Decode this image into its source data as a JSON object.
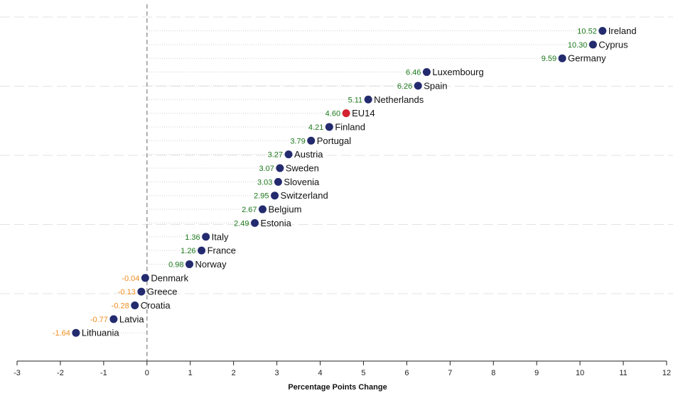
{
  "chart_data": {
    "type": "scatter",
    "title": "",
    "xlabel": "Percentage Points Change",
    "ylabel": "",
    "xlim": [
      -3,
      12
    ],
    "xticks": [
      -3,
      -2,
      -1,
      0,
      1,
      2,
      3,
      4,
      5,
      6,
      7,
      8,
      9,
      10,
      11,
      12
    ],
    "xtick_labels": [
      "-3",
      "-2",
      "-1",
      "0",
      "1",
      "2",
      "3",
      "4",
      "5",
      "6",
      "7",
      "8",
      "9",
      "10",
      "11",
      "12"
    ],
    "reference_line": 0,
    "grid": true,
    "legend": "none",
    "points": [
      {
        "label": "Ireland",
        "value": 10.52,
        "value_text": "10.52"
      },
      {
        "label": "Cyprus",
        "value": 10.3,
        "value_text": "10.30"
      },
      {
        "label": "Germany",
        "value": 9.59,
        "value_text": "9.59"
      },
      {
        "label": "Luxembourg",
        "value": 6.46,
        "value_text": "6.46"
      },
      {
        "label": "Spain",
        "value": 6.26,
        "value_text": "6.26"
      },
      {
        "label": "Netherlands",
        "value": 5.11,
        "value_text": "5.11"
      },
      {
        "label": "EU14",
        "value": 4.6,
        "value_text": "4.60",
        "highlight": true
      },
      {
        "label": "Finland",
        "value": 4.21,
        "value_text": "4.21"
      },
      {
        "label": "Portugal",
        "value": 3.79,
        "value_text": "3.79"
      },
      {
        "label": "Austria",
        "value": 3.27,
        "value_text": "3.27"
      },
      {
        "label": "Sweden",
        "value": 3.07,
        "value_text": "3.07"
      },
      {
        "label": "Slovenia",
        "value": 3.03,
        "value_text": "3.03"
      },
      {
        "label": "Switzerland",
        "value": 2.95,
        "value_text": "2.95"
      },
      {
        "label": "Belgium",
        "value": 2.67,
        "value_text": "2.67"
      },
      {
        "label": "Estonia",
        "value": 2.49,
        "value_text": "2.49"
      },
      {
        "label": "Italy",
        "value": 1.36,
        "value_text": "1.36"
      },
      {
        "label": "France",
        "value": 1.26,
        "value_text": "1.26"
      },
      {
        "label": "Norway",
        "value": 0.98,
        "value_text": "0.98"
      },
      {
        "label": "Denmark",
        "value": -0.04,
        "value_text": "-0.04"
      },
      {
        "label": "Greece",
        "value": -0.13,
        "value_text": "-0.13"
      },
      {
        "label": "Croatia",
        "value": -0.28,
        "value_text": "-0.28"
      },
      {
        "label": "Latvia",
        "value": -0.77,
        "value_text": "-0.77"
      },
      {
        "label": "Lithuania",
        "value": -1.64,
        "value_text": "-1.64"
      }
    ],
    "colors": {
      "point": "#232b6e",
      "highlight_point": "#d42230",
      "highlight_label": "#d42230",
      "positive_value": "#1e7a1e",
      "negative_value": "#f08c1e",
      "label": "#111111",
      "reference_line": "#999999",
      "grid": "#e3e3e3",
      "leader": "#d0d0d0"
    }
  }
}
